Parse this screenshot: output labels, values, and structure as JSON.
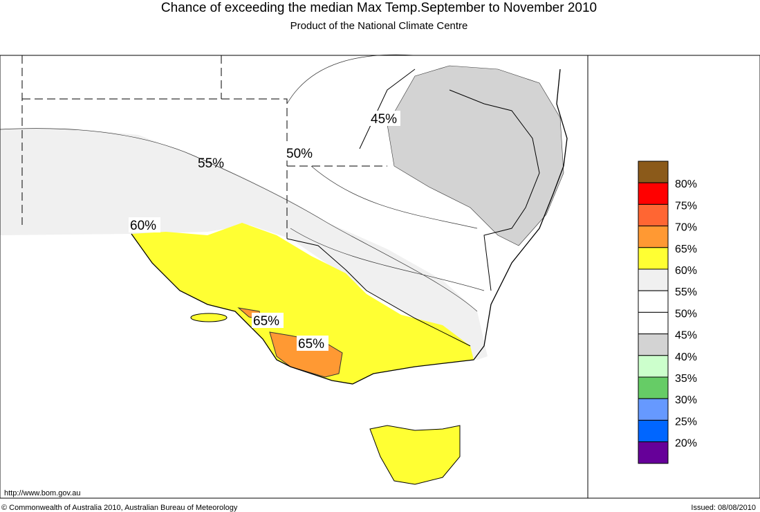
{
  "header": {
    "title": "Chance of exceeding the median Max Temp.September to November 2010",
    "subtitle": "Product of the National Climate Centre"
  },
  "map": {
    "contour_labels": [
      "45%",
      "50%",
      "55%",
      "60%",
      "65%",
      "65%"
    ]
  },
  "legend": {
    "colors": [
      "#8b5a1a",
      "#ff0000",
      "#ff6633",
      "#ff9933",
      "#ffff33",
      "#f0f0f0",
      "#ffffff",
      "#ffffff",
      "#d3d3d3",
      "#ccffcc",
      "#66cc66",
      "#6699ff",
      "#0066ff",
      "#660099"
    ],
    "labels": [
      "80%",
      "75%",
      "70%",
      "65%",
      "60%",
      "55%",
      "50%",
      "45%",
      "40%",
      "35%",
      "30%",
      "25%",
      "20%"
    ]
  },
  "footer": {
    "url": "http://www.bom.gov.au",
    "copyright": "© Commonwealth of Australia 2010, Australian Bureau of Meteorology",
    "issued": "Issued: 08/08/2010"
  }
}
